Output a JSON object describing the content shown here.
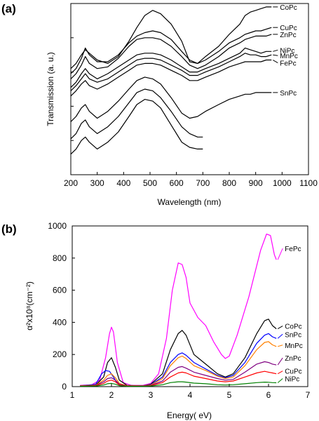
{
  "chart_data": [
    {
      "panel_label": "(a)",
      "type": "line",
      "xlabel": "Wavelength (nm)",
      "ylabel": "Transmission (a. u.)",
      "xlim": [
        200,
        1100
      ],
      "ylim": [
        0,
        10
      ],
      "xticks": [
        "200",
        "300",
        "400",
        "500",
        "600",
        "700",
        "800",
        "900",
        "1000",
        "1100"
      ],
      "show_y_tick_values": false,
      "grid": false,
      "legend": "labels at right end of each curve",
      "series": [
        {
          "name": "CoPc",
          "color": "#000000",
          "x": [
            200,
            220,
            240,
            255,
            270,
            300,
            340,
            380,
            420,
            450,
            480,
            510,
            540,
            580,
            620,
            650,
            680,
            710,
            760,
            800,
            840,
            860,
            880,
            900,
            920,
            940,
            960
          ],
          "y": [
            6.2,
            6.5,
            7.0,
            7.3,
            7.1,
            6.7,
            6.5,
            6.9,
            7.8,
            8.6,
            9.3,
            9.6,
            9.4,
            8.8,
            7.8,
            6.6,
            6.5,
            6.9,
            7.5,
            8.2,
            8.8,
            9.3,
            9.5,
            9.6,
            9.7,
            9.8,
            9.8
          ]
        },
        {
          "name": "CuPc",
          "color": "#000000",
          "x": [
            200,
            220,
            240,
            255,
            270,
            300,
            340,
            380,
            420,
            450,
            480,
            510,
            540,
            580,
            620,
            650,
            680,
            710,
            760,
            800,
            840,
            860,
            880,
            900,
            920,
            940,
            960
          ],
          "y": [
            5.9,
            6.2,
            6.8,
            7.4,
            7.0,
            6.6,
            6.6,
            7.0,
            7.7,
            8.1,
            8.3,
            8.4,
            8.3,
            7.9,
            7.2,
            6.7,
            6.5,
            6.7,
            7.2,
            7.7,
            8.0,
            8.2,
            8.3,
            8.4,
            8.4,
            8.5,
            8.6
          ]
        },
        {
          "name": "ZnPc",
          "color": "#000000",
          "x": [
            200,
            220,
            240,
            255,
            270,
            300,
            340,
            380,
            420,
            450,
            480,
            510,
            540,
            580,
            620,
            650,
            680,
            710,
            760,
            800,
            840,
            860,
            880,
            900,
            920,
            940,
            960
          ],
          "y": [
            5.6,
            5.9,
            6.4,
            6.9,
            6.5,
            6.2,
            6.3,
            6.8,
            7.5,
            7.9,
            8.0,
            8.0,
            7.9,
            7.5,
            6.9,
            6.4,
            6.2,
            6.4,
            6.9,
            7.4,
            7.7,
            7.9,
            8.0,
            8.1,
            8.1,
            8.1,
            8.2
          ]
        },
        {
          "name": "NiPc",
          "color": "#000000",
          "x": [
            200,
            220,
            240,
            255,
            270,
            300,
            340,
            380,
            420,
            450,
            480,
            510,
            540,
            580,
            620,
            650,
            680,
            710,
            760,
            800,
            840,
            860,
            880,
            900,
            920,
            940,
            960
          ],
          "y": [
            5.1,
            5.4,
            5.9,
            6.2,
            5.9,
            5.6,
            5.9,
            6.3,
            6.7,
            7.0,
            7.1,
            7.1,
            7.0,
            6.7,
            6.3,
            6.0,
            6.0,
            6.2,
            6.5,
            6.8,
            7.1,
            7.4,
            7.3,
            7.2,
            7.1,
            7.2,
            7.2
          ]
        },
        {
          "name": "MnPc",
          "color": "#000000",
          "x": [
            200,
            220,
            240,
            255,
            270,
            300,
            340,
            380,
            420,
            450,
            480,
            510,
            540,
            580,
            620,
            650,
            680,
            710,
            760,
            800,
            840,
            860,
            880,
            900,
            920,
            940,
            960
          ],
          "y": [
            4.9,
            5.2,
            5.6,
            5.9,
            5.6,
            5.4,
            5.6,
            6.0,
            6.4,
            6.7,
            6.8,
            6.8,
            6.7,
            6.4,
            6.1,
            5.8,
            5.8,
            6.0,
            6.3,
            6.6,
            6.9,
            7.1,
            7.0,
            7.0,
            6.9,
            6.9,
            7.0
          ]
        },
        {
          "name": "FePc",
          "color": "#000000",
          "x": [
            200,
            220,
            240,
            255,
            270,
            300,
            340,
            380,
            420,
            450,
            480,
            510,
            540,
            580,
            620,
            650,
            680,
            710,
            760,
            800,
            840,
            860,
            880,
            900,
            920,
            940,
            960
          ],
          "y": [
            4.6,
            4.9,
            5.3,
            5.5,
            5.2,
            5.0,
            5.3,
            5.7,
            6.1,
            6.4,
            6.5,
            6.5,
            6.4,
            6.1,
            5.8,
            5.5,
            5.5,
            5.7,
            6.0,
            6.3,
            6.5,
            6.6,
            6.6,
            6.6,
            6.6,
            6.7,
            6.7
          ]
        },
        {
          "name": "SnPc",
          "color": "#000000",
          "x": [
            200,
            220,
            240,
            255,
            270,
            300,
            340,
            380,
            420,
            450,
            480,
            510,
            540,
            580,
            620,
            650,
            680,
            710,
            760,
            800,
            840,
            860,
            880,
            900,
            920,
            940,
            960
          ],
          "y": [
            3.1,
            3.4,
            3.9,
            4.1,
            3.7,
            3.3,
            3.7,
            4.3,
            5.0,
            5.5,
            5.7,
            5.6,
            5.3,
            4.5,
            3.6,
            3.3,
            3.4,
            3.7,
            4.1,
            4.4,
            4.6,
            4.7,
            4.7,
            4.8,
            4.8,
            4.8,
            4.8
          ]
        },
        {
          "name": "",
          "color": "#000000",
          "x": [
            200,
            220,
            240,
            255,
            270,
            300,
            340,
            380,
            420,
            450,
            480,
            510,
            540,
            580,
            620,
            650,
            680,
            700
          ],
          "y": [
            2.1,
            2.4,
            3.0,
            3.2,
            2.8,
            2.4,
            2.8,
            3.4,
            4.2,
            4.8,
            5.0,
            4.9,
            4.5,
            3.7,
            2.8,
            2.4,
            2.2,
            2.2
          ]
        },
        {
          "name": "",
          "color": "#000000",
          "x": [
            200,
            220,
            240,
            255,
            270,
            300,
            340,
            380,
            420,
            450,
            480,
            510,
            540,
            580,
            620,
            650,
            680,
            700
          ],
          "y": [
            1.2,
            1.5,
            2.0,
            2.2,
            1.9,
            1.5,
            1.9,
            2.5,
            3.4,
            4.1,
            4.4,
            4.3,
            3.9,
            2.9,
            1.9,
            1.6,
            1.5,
            1.5
          ]
        }
      ]
    },
    {
      "panel_label": "(b)",
      "type": "line",
      "xlabel": "Energy( eV)",
      "ylabel": "α²x10⁸(cm⁻²)",
      "xlim": [
        1,
        7
      ],
      "ylim": [
        0,
        1000
      ],
      "xticks": [
        "1",
        "2",
        "3",
        "4",
        "5",
        "6",
        "7"
      ],
      "yticks": [
        "0",
        "200",
        "400",
        "600",
        "800",
        "1000"
      ],
      "grid": false,
      "legend": "labels at right end of each curve",
      "series": [
        {
          "name": "FePc",
          "color": "#ff00ff",
          "x": [
            1.2,
            1.5,
            1.7,
            1.85,
            1.95,
            2.0,
            2.05,
            2.15,
            2.3,
            2.5,
            2.8,
            3.0,
            3.2,
            3.4,
            3.55,
            3.7,
            3.8,
            3.9,
            4.0,
            4.2,
            4.4,
            4.6,
            4.8,
            4.9,
            5.0,
            5.2,
            5.5,
            5.8,
            5.95,
            6.05,
            6.15,
            6.2
          ],
          "y": [
            8,
            12,
            40,
            180,
            330,
            370,
            340,
            150,
            25,
            8,
            8,
            20,
            80,
            300,
            600,
            770,
            760,
            680,
            520,
            430,
            380,
            280,
            200,
            175,
            190,
            320,
            560,
            850,
            950,
            940,
            820,
            790
          ]
        },
        {
          "name": "CoPc",
          "color": "#000000",
          "x": [
            1.2,
            1.6,
            1.8,
            1.9,
            2.0,
            2.1,
            2.2,
            2.4,
            2.8,
            3.0,
            3.3,
            3.5,
            3.7,
            3.8,
            3.9,
            4.1,
            4.4,
            4.7,
            4.9,
            5.1,
            5.4,
            5.7,
            5.9,
            6.0,
            6.1,
            6.2
          ],
          "y": [
            5,
            10,
            60,
            150,
            180,
            120,
            40,
            8,
            5,
            15,
            80,
            230,
            330,
            350,
            320,
            200,
            140,
            80,
            60,
            80,
            180,
            330,
            410,
            420,
            380,
            360
          ]
        },
        {
          "name": "SnPc",
          "color": "#0000ff",
          "x": [
            1.2,
            1.6,
            1.75,
            1.85,
            1.95,
            2.05,
            2.15,
            2.3,
            2.8,
            3.0,
            3.3,
            3.5,
            3.7,
            3.8,
            3.9,
            4.1,
            4.4,
            4.7,
            4.9,
            5.1,
            5.4,
            5.7,
            5.9,
            6.0,
            6.1,
            6.2
          ],
          "y": [
            5,
            15,
            80,
            100,
            95,
            60,
            20,
            6,
            5,
            12,
            60,
            150,
            200,
            210,
            195,
            150,
            110,
            70,
            55,
            70,
            150,
            270,
            320,
            330,
            310,
            300
          ]
        },
        {
          "name": "MnPc",
          "color": "#ff8000",
          "x": [
            1.2,
            1.6,
            1.8,
            1.9,
            2.0,
            2.1,
            2.2,
            2.4,
            2.8,
            3.0,
            3.3,
            3.5,
            3.7,
            3.8,
            3.9,
            4.1,
            4.4,
            4.7,
            4.9,
            5.1,
            5.4,
            5.7,
            5.9,
            6.0,
            6.1,
            6.2
          ],
          "y": [
            5,
            10,
            40,
            70,
            80,
            55,
            20,
            6,
            5,
            10,
            50,
            130,
            180,
            190,
            175,
            130,
            100,
            65,
            50,
            60,
            130,
            230,
            275,
            280,
            260,
            250
          ]
        },
        {
          "name": "ZnPc",
          "color": "#800080",
          "x": [
            1.2,
            1.6,
            1.8,
            1.9,
            2.0,
            2.1,
            2.2,
            2.4,
            2.8,
            3.0,
            3.3,
            3.5,
            3.7,
            3.8,
            3.9,
            4.1,
            4.4,
            4.7,
            4.9,
            5.1,
            5.4,
            5.7,
            5.9,
            6.0,
            6.1,
            6.2
          ],
          "y": [
            4,
            8,
            30,
            50,
            55,
            40,
            15,
            5,
            4,
            8,
            35,
            90,
            120,
            125,
            115,
            90,
            70,
            50,
            40,
            45,
            90,
            140,
            155,
            150,
            140,
            135
          ]
        },
        {
          "name": "CuPc",
          "color": "#ff0000",
          "x": [
            1.2,
            1.6,
            1.8,
            1.9,
            2.0,
            2.1,
            2.2,
            2.4,
            2.8,
            3.0,
            3.3,
            3.5,
            3.7,
            3.8,
            3.9,
            4.1,
            4.4,
            4.7,
            4.9,
            5.1,
            5.4,
            5.7,
            5.9,
            6.0,
            6.1,
            6.2
          ],
          "y": [
            3,
            6,
            20,
            35,
            40,
            30,
            10,
            4,
            3,
            6,
            25,
            60,
            85,
            90,
            85,
            65,
            50,
            35,
            30,
            35,
            60,
            85,
            95,
            90,
            85,
            80
          ]
        },
        {
          "name": "NiPc",
          "color": "#008000",
          "x": [
            1.2,
            1.6,
            1.8,
            1.9,
            2.0,
            2.1,
            2.2,
            2.4,
            2.8,
            3.0,
            3.3,
            3.5,
            3.7,
            3.8,
            3.9,
            4.1,
            4.4,
            4.7,
            4.9,
            5.1,
            5.4,
            5.7,
            5.9,
            6.0,
            6.1,
            6.2
          ],
          "y": [
            2,
            4,
            10,
            18,
            20,
            15,
            6,
            2,
            2,
            4,
            12,
            25,
            30,
            30,
            28,
            22,
            18,
            12,
            10,
            12,
            18,
            25,
            28,
            27,
            25,
            24
          ]
        }
      ]
    }
  ]
}
